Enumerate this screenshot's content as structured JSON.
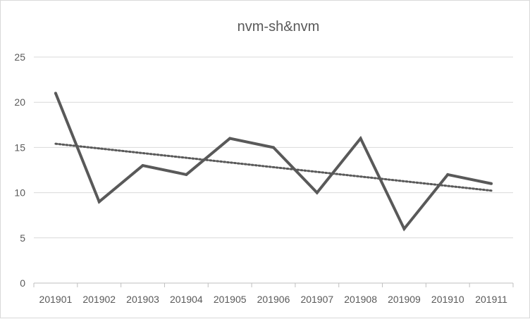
{
  "chart_data": {
    "type": "line",
    "title": "nvm-sh&nvm",
    "xlabel": "",
    "ylabel": "",
    "categories": [
      "201901",
      "201902",
      "201903",
      "201904",
      "201905",
      "201906",
      "201907",
      "201908",
      "201909",
      "201910",
      "201911"
    ],
    "series": [
      {
        "values": [
          21,
          9,
          13,
          12,
          16,
          15,
          10,
          16,
          6,
          12,
          11
        ],
        "color": "#595959"
      }
    ],
    "trendline": {
      "type": "linear",
      "style": "dotted",
      "color": "#595959"
    },
    "ylim": [
      0,
      25
    ],
    "yticks": [
      0,
      5,
      10,
      15,
      20,
      25
    ],
    "grid": true,
    "legend": "none"
  }
}
